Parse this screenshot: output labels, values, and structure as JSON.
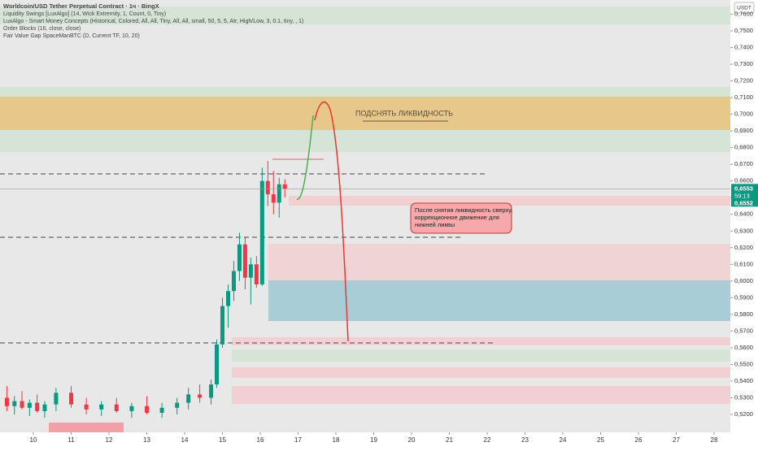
{
  "chart_data": {
    "type": "candlestick",
    "title": "Worldcoin/USD Tether Perpetual Contract · 1ч · BingX",
    "indicators": [
      "Liquidity Swings [LuxAlgo] (14, Wick Extremity, 1, Count, 0, Tiny)",
      "LuxAlgo - Smart Money Concepts (Historical, Colored, All, All, Tiny, All, All, small, 50, 5, 5, Atr, High/Low, 3, 0.1, tiny, , 1)",
      "Order Blocks (16, close, close)",
      "Fair Value Gap SpaceManBTC (D, Current TF, 10, 20)"
    ],
    "currency": "USDT",
    "up_color": "#089981",
    "down_color": "#f23645",
    "candles": {
      "x": [
        9.3,
        9.5,
        9.7,
        9.9,
        10.1,
        10.3,
        10.6,
        11.0,
        11.4,
        11.8,
        12.2,
        12.6,
        13.0,
        13.4,
        13.8,
        14.1,
        14.4,
        14.7,
        14.85,
        15.0,
        15.15,
        15.3,
        15.45,
        15.6,
        15.75,
        15.9,
        16.05,
        16.2,
        16.35,
        16.5,
        16.65
      ],
      "open": [
        0.53,
        0.525,
        0.528,
        0.524,
        0.527,
        0.522,
        0.526,
        0.533,
        0.526,
        0.523,
        0.526,
        0.522,
        0.525,
        0.521,
        0.524,
        0.527,
        0.532,
        0.53,
        0.538,
        0.562,
        0.585,
        0.594,
        0.606,
        0.622,
        0.602,
        0.61,
        0.598,
        0.66,
        0.652,
        0.647,
        0.658
      ],
      "high": [
        0.537,
        0.531,
        0.534,
        0.529,
        0.532,
        0.528,
        0.536,
        0.537,
        0.53,
        0.528,
        0.53,
        0.527,
        0.531,
        0.527,
        0.53,
        0.536,
        0.538,
        0.541,
        0.565,
        0.59,
        0.598,
        0.612,
        0.629,
        0.626,
        0.614,
        0.615,
        0.668,
        0.672,
        0.666,
        0.662,
        0.661
      ],
      "low": [
        0.522,
        0.52,
        0.523,
        0.519,
        0.521,
        0.518,
        0.522,
        0.524,
        0.52,
        0.519,
        0.521,
        0.518,
        0.52,
        0.518,
        0.52,
        0.523,
        0.527,
        0.526,
        0.536,
        0.56,
        0.572,
        0.588,
        0.6,
        0.595,
        0.586,
        0.596,
        0.597,
        0.645,
        0.64,
        0.638,
        0.65
      ],
      "close": [
        0.525,
        0.528,
        0.524,
        0.527,
        0.522,
        0.526,
        0.533,
        0.526,
        0.523,
        0.526,
        0.522,
        0.525,
        0.521,
        0.524,
        0.527,
        0.532,
        0.53,
        0.538,
        0.562,
        0.585,
        0.594,
        0.606,
        0.622,
        0.602,
        0.61,
        0.598,
        0.66,
        0.652,
        0.647,
        0.658,
        0.6553
      ]
    },
    "xlim": [
      9.118,
      28.43
    ],
    "xticks": [
      10,
      11,
      12,
      13,
      14,
      15,
      16,
      17,
      18,
      19,
      20,
      21,
      22,
      23,
      24,
      25,
      26,
      27,
      28
    ],
    "ylim": [
      0.5093,
      0.7685
    ],
    "yticks": [
      {
        "value": 0.52,
        "label": "0,5200"
      },
      {
        "value": 0.53,
        "label": "0,5300"
      },
      {
        "value": 0.54,
        "label": "0,5400"
      },
      {
        "value": 0.55,
        "label": "0,5500"
      },
      {
        "value": 0.56,
        "label": "0,5600"
      },
      {
        "value": 0.57,
        "label": "0,5700"
      },
      {
        "value": 0.58,
        "label": "0,5800"
      },
      {
        "value": 0.59,
        "label": "0,5900"
      },
      {
        "value": 0.6,
        "label": "0,6000"
      },
      {
        "value": 0.61,
        "label": "0,6100"
      },
      {
        "value": 0.62,
        "label": "0,6200"
      },
      {
        "value": 0.63,
        "label": "0,6300"
      },
      {
        "value": 0.64,
        "label": "0,6400"
      },
      {
        "value": 0.65,
        "label": "0,6500"
      },
      {
        "value": 0.66,
        "label": "0,6600"
      },
      {
        "value": 0.67,
        "label": "0,6700"
      },
      {
        "value": 0.68,
        "label": "0,6800"
      },
      {
        "value": 0.69,
        "label": "0,6900"
      },
      {
        "value": 0.7,
        "label": "0,7000"
      },
      {
        "value": 0.71,
        "label": "0,7100"
      },
      {
        "value": 0.72,
        "label": "0,7200"
      },
      {
        "value": 0.73,
        "label": "0,7300"
      },
      {
        "value": 0.74,
        "label": "0,7400"
      },
      {
        "value": 0.75,
        "label": "0,7500"
      },
      {
        "value": 0.76,
        "label": "0,7600"
      }
    ],
    "last_price": {
      "value": 0.6553,
      "label": "0,6553"
    },
    "countdown": "59:13",
    "bid_price": {
      "value": 0.6552,
      "label": "0,6552"
    },
    "annotations": [
      "ПОДСНЯТЬ ЛИКВИДНОСТЬ",
      "После снятия ликвидность сверху,",
      "коррекционное движение для",
      "нижней ликвы"
    ]
  }
}
